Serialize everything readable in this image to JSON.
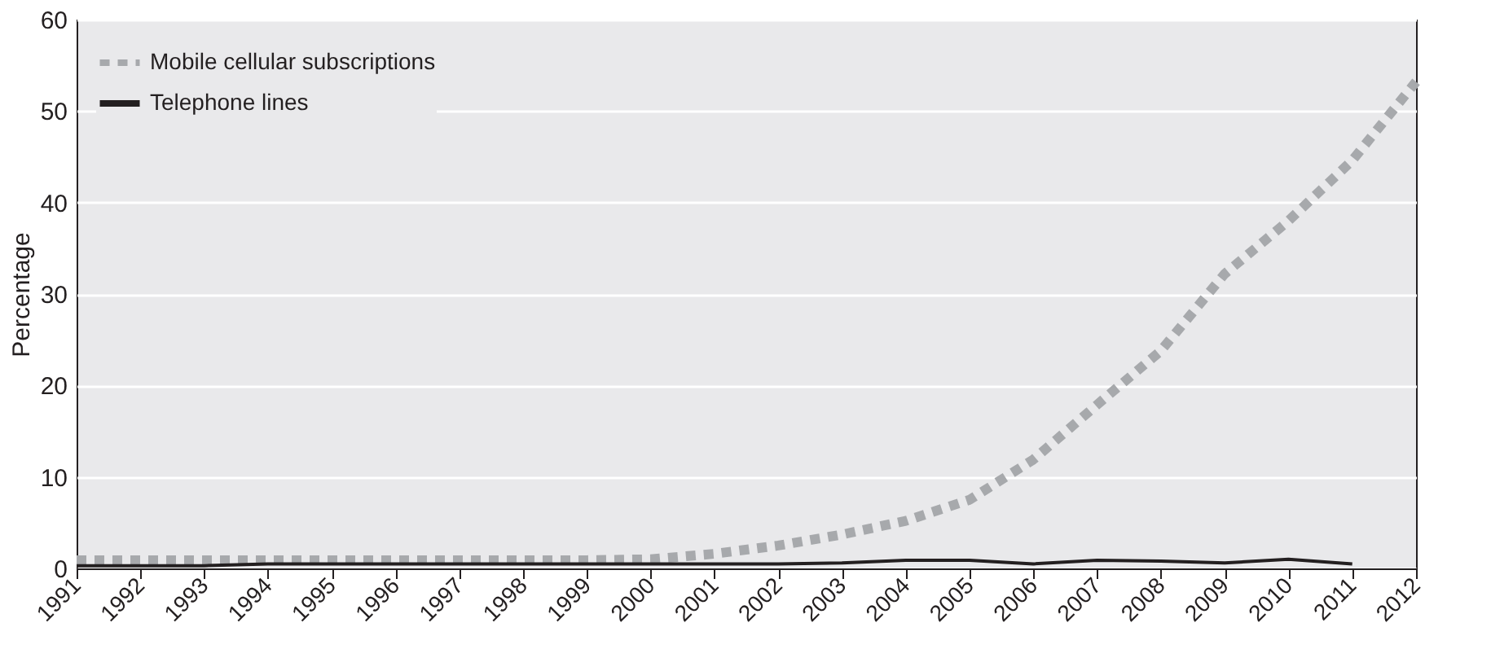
{
  "chart_data": {
    "type": "line",
    "ylabel": "Percentage",
    "categories": [
      "1991",
      "1992",
      "1993",
      "1994",
      "1995",
      "1996",
      "1997",
      "1998",
      "1999",
      "2000",
      "2001",
      "2002",
      "2003",
      "2004",
      "2005",
      "2006",
      "2007",
      "2008",
      "2009",
      "2010",
      "2011",
      "2012"
    ],
    "series": [
      {
        "name": "Mobile cellular subscriptions",
        "color": "#a7a9ac",
        "line_style": "dotted",
        "values": [
          0.9,
          0.9,
          0.9,
          0.9,
          0.9,
          0.9,
          0.9,
          0.9,
          0.9,
          1.0,
          1.6,
          2.5,
          3.7,
          5.2,
          7.5,
          11.9,
          17.9,
          23.8,
          32.2,
          38,
          44.6,
          53.2
        ]
      },
      {
        "name": "Telephone lines",
        "color": "#231f20",
        "line_style": "solid",
        "values": [
          0.3,
          0.3,
          0.3,
          0.5,
          0.5,
          0.5,
          0.5,
          0.5,
          0.5,
          0.5,
          0.5,
          0.5,
          0.6,
          0.9,
          0.9,
          0.5,
          0.9,
          0.8,
          0.6,
          1.0,
          0.5,
          null
        ]
      }
    ],
    "ylim": [
      0,
      60
    ],
    "yticks": [
      0,
      10,
      20,
      30,
      40,
      50,
      60
    ],
    "grid": "y",
    "legend": "top left"
  }
}
